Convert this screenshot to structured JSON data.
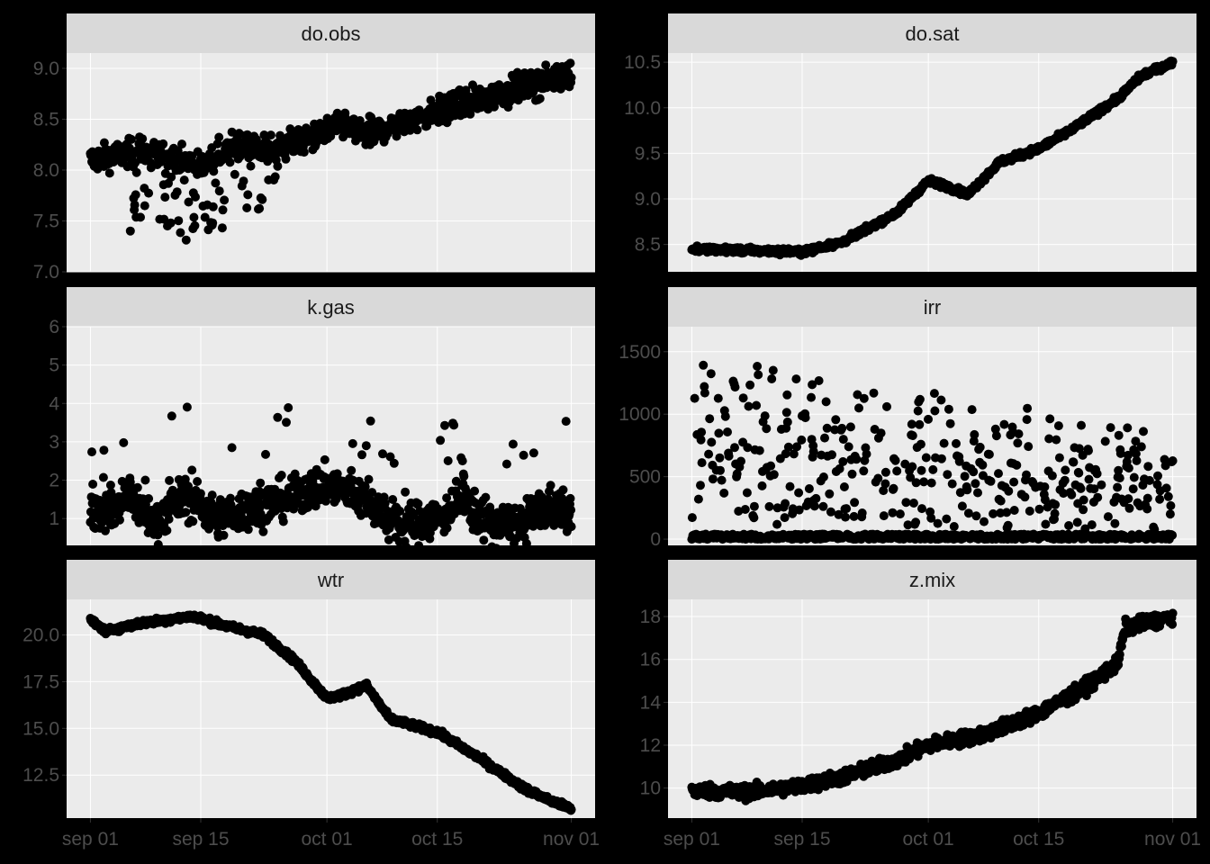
{
  "colors": {
    "background": "#000000",
    "panel": "#ebebeb",
    "strip": "#d9d9d9",
    "grid": "#ffffff",
    "points": "#000000",
    "tick_text": "#4d4d4d"
  },
  "chart_data": {
    "type": "scatter",
    "layout": "facet grid, 3 rows x 2 columns, free y scales, shared x axis",
    "grid": true,
    "x_ticks": [
      "sep 01",
      "sep 15",
      "oct 01",
      "oct 15",
      "nov 01"
    ],
    "x_range": [
      "2016-09-01",
      "2016-11-01"
    ],
    "panels": [
      {
        "title": "do.obs",
        "ylim": [
          7.0,
          9.15
        ],
        "y_ticks": [
          "7.0",
          "7.5",
          "8.0",
          "8.5",
          "9.0"
        ],
        "trend": [
          [
            "2016-09-01",
            8.1
          ],
          [
            "2016-09-08",
            8.2
          ],
          [
            "2016-09-15",
            8.05
          ],
          [
            "2016-09-20",
            8.25
          ],
          [
            "2016-09-24",
            8.2
          ],
          [
            "2016-09-30",
            8.35
          ],
          [
            "2016-10-03",
            8.45
          ],
          [
            "2016-10-06",
            8.35
          ],
          [
            "2016-10-12",
            8.5
          ],
          [
            "2016-10-18",
            8.65
          ],
          [
            "2016-10-25",
            8.8
          ],
          [
            "2016-10-28",
            8.85
          ],
          [
            "2016-11-01",
            8.95
          ]
        ],
        "spread": 0.12
      },
      {
        "title": "do.sat",
        "ylim": [
          8.2,
          10.6
        ],
        "y_ticks": [
          "8.5",
          "9.0",
          "9.5",
          "10.0",
          "10.5"
        ],
        "trend": [
          [
            "2016-09-01",
            8.45
          ],
          [
            "2016-09-15",
            8.42
          ],
          [
            "2016-09-20",
            8.52
          ],
          [
            "2016-09-27",
            8.85
          ],
          [
            "2016-10-01",
            9.2
          ],
          [
            "2016-10-03",
            9.15
          ],
          [
            "2016-10-06",
            9.05
          ],
          [
            "2016-10-10",
            9.4
          ],
          [
            "2016-10-15",
            9.55
          ],
          [
            "2016-10-19",
            9.75
          ],
          [
            "2016-10-25",
            10.1
          ],
          [
            "2016-10-28",
            10.35
          ],
          [
            "2016-11-01",
            10.5
          ]
        ],
        "spread": 0.03
      },
      {
        "title": "k.gas",
        "ylim": [
          0.3,
          6.0
        ],
        "y_ticks": [
          "1",
          "2",
          "3",
          "4",
          "5",
          "6"
        ],
        "trend": [
          [
            "2016-09-01",
            1.4
          ],
          [
            "2016-09-03",
            1.2
          ],
          [
            "2016-09-06",
            1.6
          ],
          [
            "2016-09-09",
            0.9
          ],
          [
            "2016-09-13",
            1.6
          ],
          [
            "2016-09-17",
            1.0
          ],
          [
            "2016-09-22",
            1.3
          ],
          [
            "2016-09-27",
            1.6
          ],
          [
            "2016-10-01",
            1.9
          ],
          [
            "2016-10-06",
            1.5
          ],
          [
            "2016-10-10",
            0.8
          ],
          [
            "2016-10-15",
            1.0
          ],
          [
            "2016-10-18",
            1.5
          ],
          [
            "2016-10-22",
            0.8
          ],
          [
            "2016-10-26",
            0.9
          ],
          [
            "2016-10-29",
            1.3
          ],
          [
            "2016-11-01",
            1.1
          ]
        ],
        "spread": 0.5
      },
      {
        "title": "irr",
        "ylim": [
          -50,
          1700
        ],
        "y_ticks": [
          "0",
          "500",
          "1000",
          "1500"
        ],
        "trend": [
          [
            "2016-09-01",
            1500
          ],
          [
            "2016-10-01",
            1250
          ],
          [
            "2016-10-15",
            1050
          ],
          [
            "2016-11-01",
            900
          ]
        ],
        "spread": 0
      },
      {
        "title": "wtr",
        "ylim": [
          10.2,
          21.9
        ],
        "y_ticks": [
          "12.5",
          "15.0",
          "17.5",
          "20.0"
        ],
        "trend": [
          [
            "2016-09-01",
            20.8
          ],
          [
            "2016-09-03",
            20.2
          ],
          [
            "2016-09-07",
            20.6
          ],
          [
            "2016-09-14",
            21.0
          ],
          [
            "2016-09-18",
            20.5
          ],
          [
            "2016-09-23",
            20.0
          ],
          [
            "2016-09-27",
            18.6
          ],
          [
            "2016-10-01",
            16.6
          ],
          [
            "2016-10-03",
            16.8
          ],
          [
            "2016-10-06",
            17.3
          ],
          [
            "2016-10-09",
            15.5
          ],
          [
            "2016-10-15",
            14.8
          ],
          [
            "2016-10-20",
            13.5
          ],
          [
            "2016-10-26",
            11.8
          ],
          [
            "2016-10-29",
            11.2
          ],
          [
            "2016-11-01",
            10.7
          ]
        ],
        "spread": 0.15
      },
      {
        "title": "z.mix",
        "ylim": [
          8.6,
          18.8
        ],
        "y_ticks": [
          "10",
          "12",
          "14",
          "16",
          "18"
        ],
        "trend": [
          [
            "2016-09-01",
            9.9
          ],
          [
            "2016-09-08",
            9.8
          ],
          [
            "2016-09-15",
            10.1
          ],
          [
            "2016-09-20",
            10.5
          ],
          [
            "2016-09-27",
            11.3
          ],
          [
            "2016-10-01",
            12.0
          ],
          [
            "2016-10-08",
            12.5
          ],
          [
            "2016-10-15",
            13.5
          ],
          [
            "2016-10-20",
            14.5
          ],
          [
            "2016-10-25",
            15.8
          ],
          [
            "2016-10-26",
            17.5
          ],
          [
            "2016-11-01",
            18.0
          ]
        ],
        "spread": 0.3
      }
    ]
  }
}
